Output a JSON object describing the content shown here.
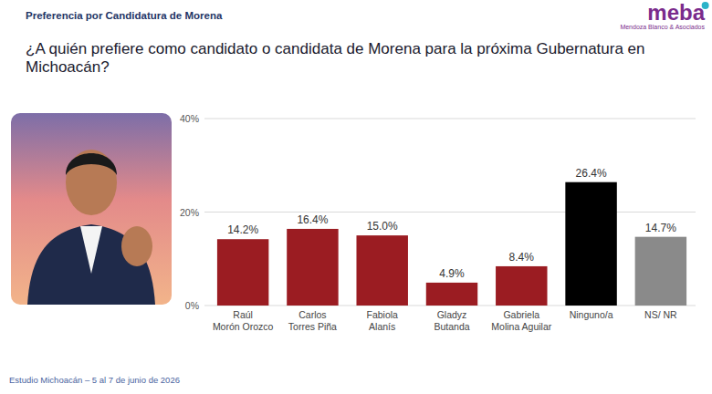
{
  "header": "Preferencia por Candidatura de Morena",
  "brand": {
    "name": "meba",
    "subtitle": "Mendoza Blanco & Asociados"
  },
  "footer": "Estudio Michoacán – 5 al 7 de junio de 2026",
  "chart_data": {
    "type": "bar",
    "title": "¿A quién prefiere como candidato o candidata de Morena para la próxima Gubernatura en Michoacán?",
    "categories": [
      "Raúl Morón Orozco",
      "Carlos Torres Piña",
      "Fabiola Alanís",
      "Gladyz Butanda",
      "Gabriela Molina Aguilar",
      "Ninguno/a",
      "NS/ NR"
    ],
    "values": [
      14.2,
      16.4,
      15.0,
      4.9,
      8.4,
      26.4,
      14.7
    ],
    "value_labels": [
      "14.2%",
      "16.4%",
      "15.0%",
      "4.9%",
      "8.4%",
      "26.4%",
      "14.7%"
    ],
    "colors": [
      "#9b1c22",
      "#9b1c22",
      "#9b1c22",
      "#9b1c22",
      "#9b1c22",
      "#000000",
      "#8a8a8a"
    ],
    "ylim": [
      0,
      40
    ],
    "yticks": [
      {
        "value": 0,
        "label": "0%"
      },
      {
        "value": 20,
        "label": "20%"
      },
      {
        "value": 40,
        "label": "40%"
      }
    ],
    "grid": true,
    "data_labels": true
  }
}
